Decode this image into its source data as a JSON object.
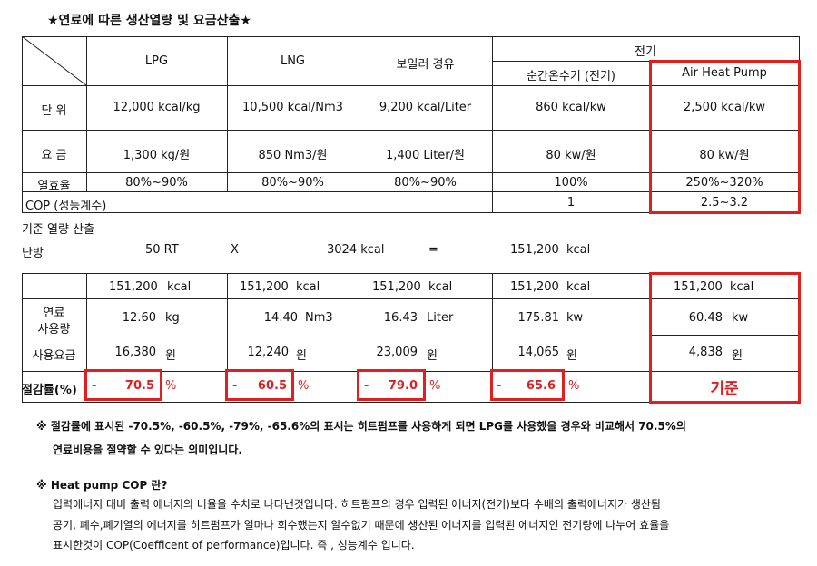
{
  "title": "★연료에 따른 생산열량 및 요금산출★",
  "table1": {
    "headers": {
      "lpg": "LPG",
      "lng": "LNG",
      "oil": "보일러 경유",
      "electric": "전기",
      "instant": "순간온수기 (전기)",
      "heatpump": "Air Heat Pump"
    },
    "unit": {
      "label": "단 위",
      "values": [
        "12,000 kcal/kg",
        "10,500  kcal/Nm3",
        "9,200  kcal/Liter",
        "860 kcal/kw",
        "2,500 kcal/kw"
      ]
    },
    "rate": {
      "label": "요 금",
      "values": [
        "1,300 kg/원",
        "850 Nm3/원",
        "1,400 Liter/원",
        "80 kw/원",
        "80 kw/원"
      ]
    },
    "efficiency": {
      "label": "열효율",
      "values": [
        "80%~90%",
        "80%~90%",
        "80%~90%",
        "100%",
        "250%~320%"
      ]
    },
    "cop": {
      "label": "COP (성능계수)",
      "values": [
        "1",
        "2.5~3.2"
      ]
    }
  },
  "calc": {
    "heading": "기준 열량 산출",
    "label": "난방",
    "rt": "50 RT",
    "op": "X",
    "kcal": "3024 kcal",
    "eq": "=",
    "result": "151,200",
    "result_unit": "kcal"
  },
  "table2": {
    "base": [
      {
        "v": "151,200",
        "u": "kcal"
      },
      {
        "v": "151,200",
        "u": "kcal"
      },
      {
        "v": "151,200",
        "u": "kcal"
      },
      {
        "v": "151,200",
        "u": "kcal"
      },
      {
        "v": "151,200",
        "u": "kcal"
      }
    ],
    "usage_label_1": "연료",
    "usage_label_2": "사용량",
    "usage": [
      {
        "v": "12.60",
        "u": "kg"
      },
      {
        "v": "14.40",
        "u": "Nm3"
      },
      {
        "v": "16.43",
        "u": "Liter"
      },
      {
        "v": "175.81",
        "u": "kw"
      },
      {
        "v": "60.48",
        "u": "kw"
      }
    ],
    "cost_label": "사용요금",
    "cost": [
      {
        "v": "16,380",
        "u": "원"
      },
      {
        "v": "12,240",
        "u": "원"
      },
      {
        "v": "23,009",
        "u": "원"
      },
      {
        "v": "14,065",
        "u": "원"
      },
      {
        "v": "4,838",
        "u": "원"
      }
    ],
    "saving_label": "절감률(%)",
    "saving": [
      {
        "sign": "-",
        "v": "70.5",
        "u": "%"
      },
      {
        "sign": "-",
        "v": "60.5",
        "u": "%"
      },
      {
        "sign": "-",
        "v": "79.0",
        "u": "%"
      },
      {
        "sign": "-",
        "v": "65.6",
        "u": "%"
      }
    ],
    "reference": "기준"
  },
  "notes": {
    "note1_line1": "※ 절감률에 표시된  -70.5%, -60.5%, -79%, -65.6%의 표시는 히트펌프를 사용하게 되면 LPG를 사용했을 경우와 비교해서 70.5%의",
    "note1_line2": "연료비용을 절약할 수 있다는 의미입니다.",
    "note2_title": "※ Heat pump COP 란?",
    "note2_line1": "입력에너지 대비 출력 에너지의 비율을 수치로 나타낸것입니다.  히트펌프의 경우 입력된 에너지(전기)보다 수배의 출력에너지가 생산됨",
    "note2_line2": "공기, 폐수,폐기열의 에너지를 히트펌프가 얼마나 회수했는지 알수없기 때문에 생산된 에너지를 입력된 에너지인 전기량에 나누어 효율을",
    "note2_line3": "표시한것이 COP(Coefficent of performance)입니다.   즉 , 성능계수 입니다."
  }
}
